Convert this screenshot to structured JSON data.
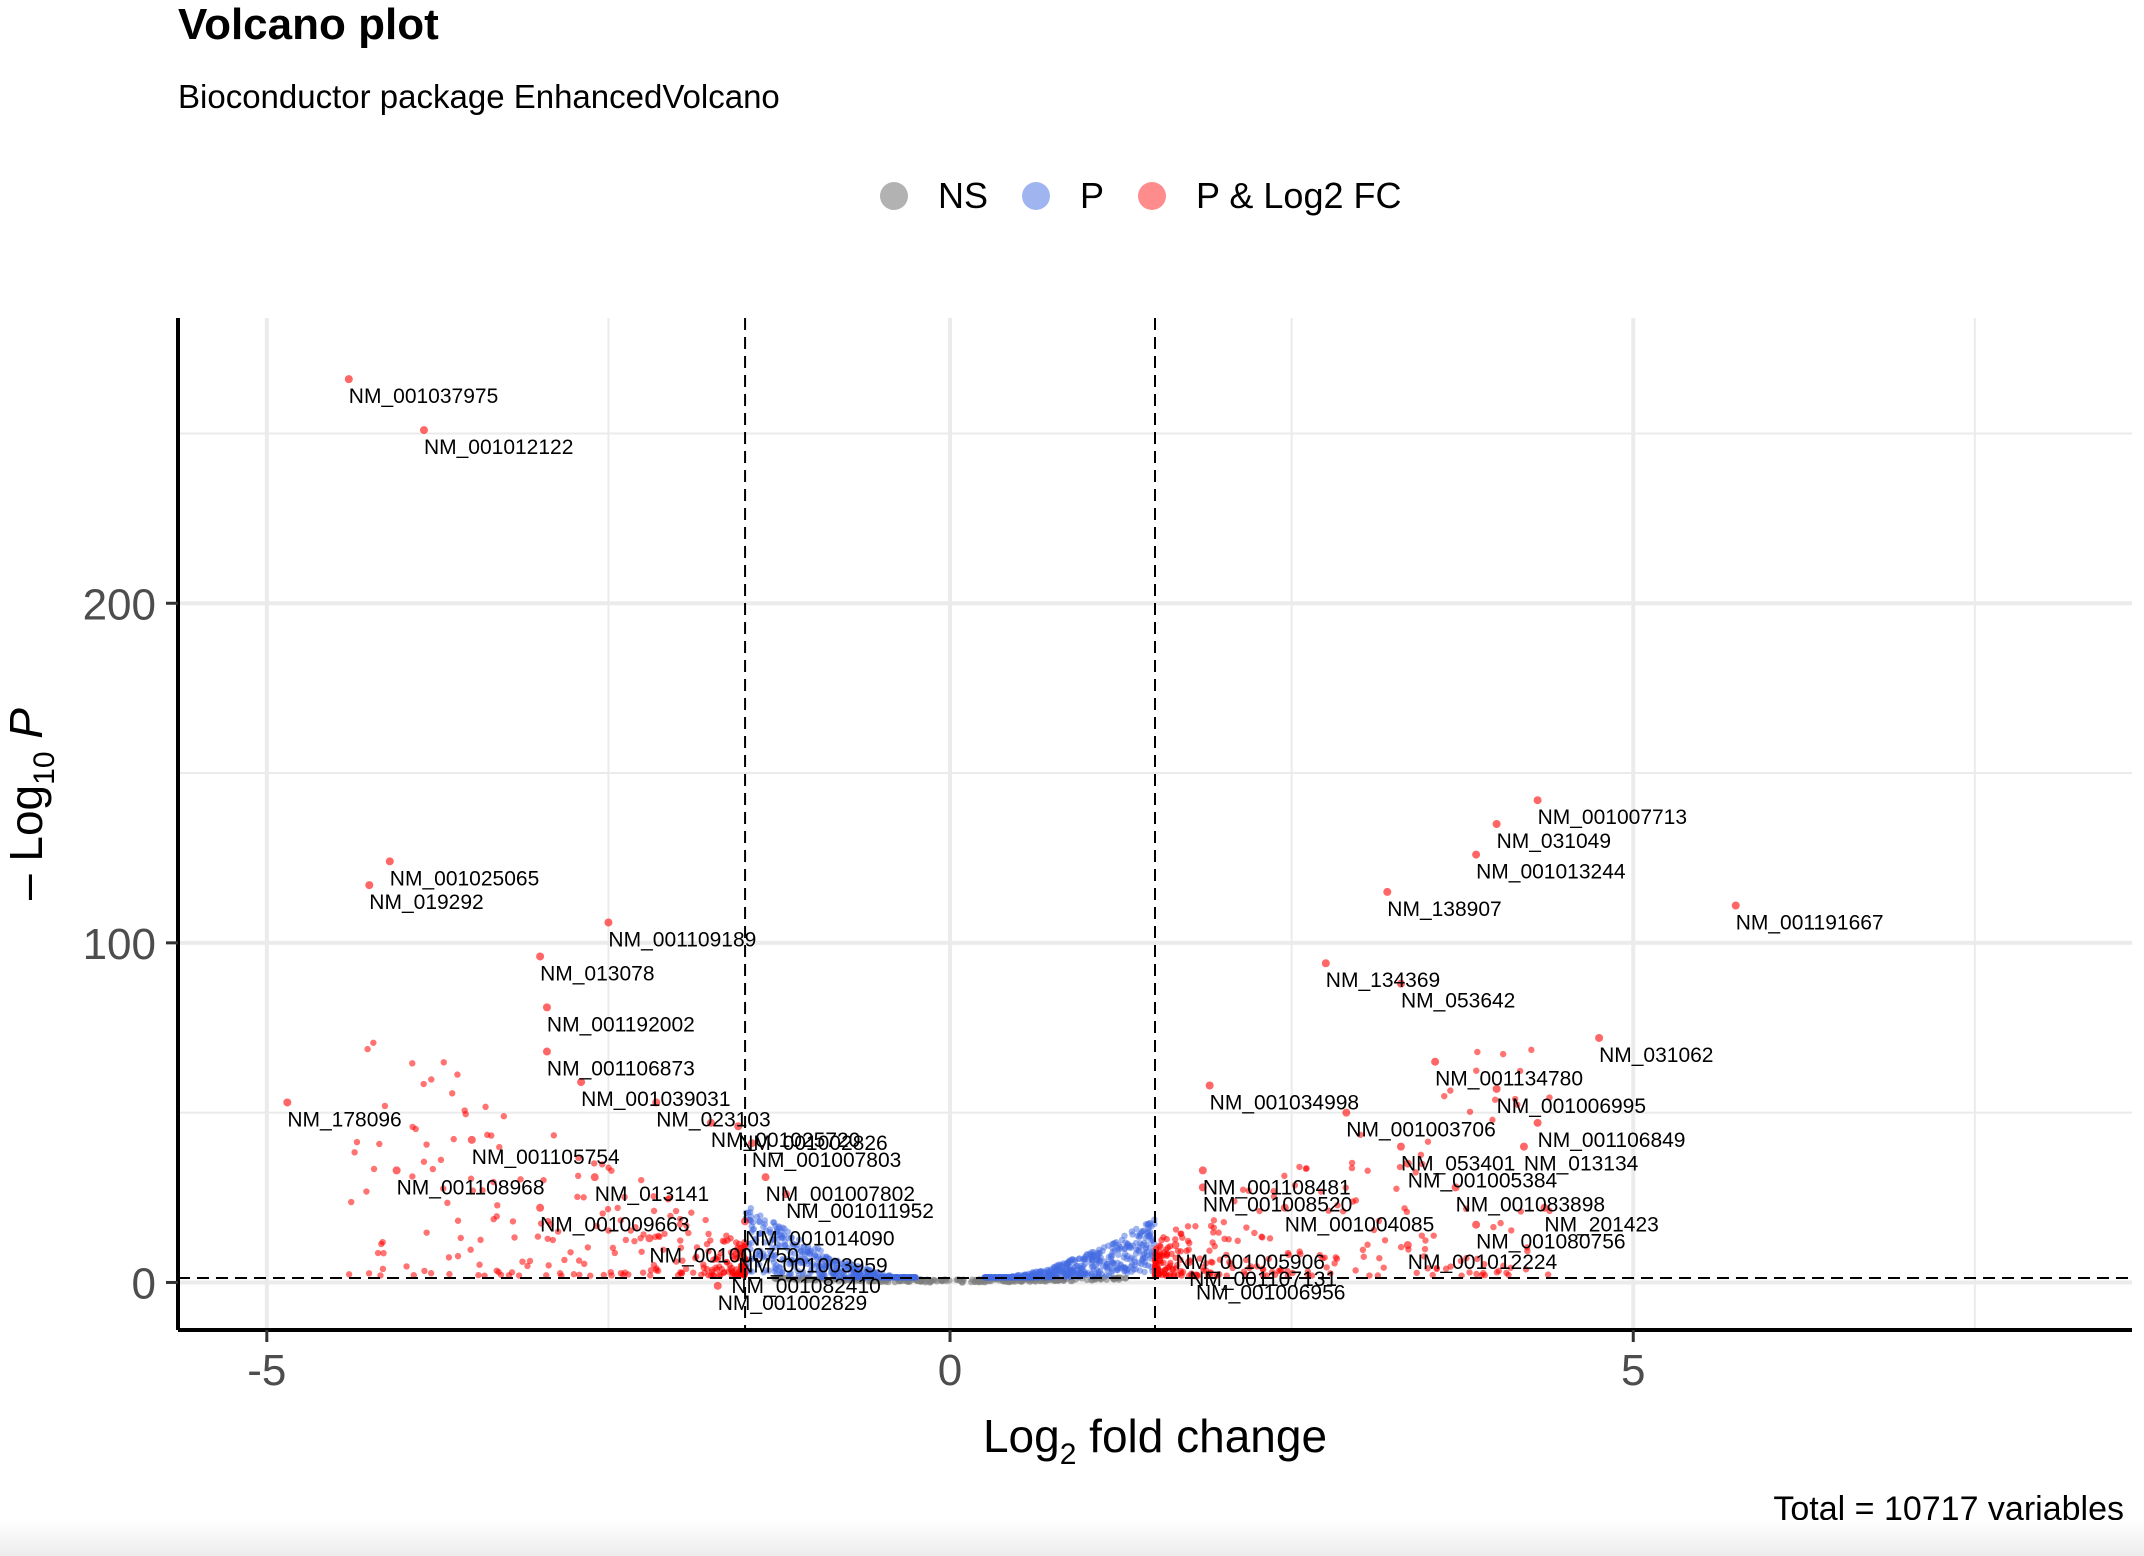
{
  "title": "Volcano plot",
  "subtitle": "Bioconductor package EnhancedVolcano",
  "caption": "Total = 10717 variables",
  "legend": [
    {
      "label": "NS",
      "color": "#7f7f7f"
    },
    {
      "label": "P",
      "color": "#4169e1"
    },
    {
      "label": "P & Log2 FC",
      "color": "#ff0000"
    }
  ],
  "chart_data": {
    "type": "scatter",
    "title": "Volcano plot",
    "subtitle": "Bioconductor package EnhancedVolcano",
    "xlabel_main": "Log",
    "xlabel_sub": "2",
    "xlabel_tail": " fold change",
    "ylabel_main": "– Log",
    "ylabel_sub": "10",
    "ylabel_tail": " P",
    "xlim": [
      -5.65,
      8.65
    ],
    "ylim": [
      -14,
      284
    ],
    "x_ticks": [
      -5,
      0,
      5
    ],
    "x_tick_labels": [
      "-5",
      "0",
      "5"
    ],
    "x_minor_grid": [
      -2.5,
      2.5,
      7.5
    ],
    "y_ticks": [
      0,
      100,
      200
    ],
    "y_tick_labels": [
      "0",
      "100",
      "200"
    ],
    "y_minor_grid": [
      50,
      150,
      250
    ],
    "fc_cutoff": 1.5,
    "p_cutoff": 1.3,
    "grid": true,
    "legend_position": "top",
    "colors": {
      "NS": "#7f7f7f",
      "P": "#4169e1",
      "P & Log2 FC": "#ff0000",
      "cutoff_line": "#000000"
    },
    "labeled_points": [
      {
        "label": "NM_001037975",
        "x": -4.4,
        "y": 266
      },
      {
        "label": "NM_001012122",
        "x": -3.85,
        "y": 251
      },
      {
        "label": "NM_001025065",
        "x": -4.1,
        "y": 124
      },
      {
        "label": "NM_019292",
        "x": -4.25,
        "y": 117
      },
      {
        "label": "NM_001109189",
        "x": -2.5,
        "y": 106
      },
      {
        "label": "NM_013078",
        "x": -3.0,
        "y": 96
      },
      {
        "label": "NM_001192002",
        "x": -2.95,
        "y": 81
      },
      {
        "label": "NM_001106873",
        "x": -2.95,
        "y": 68
      },
      {
        "label": "NM_001039031",
        "x": -2.7,
        "y": 59
      },
      {
        "label": "NM_023103",
        "x": -2.15,
        "y": 53
      },
      {
        "label": "NM_001025720",
        "x": -1.75,
        "y": 47
      },
      {
        "label": "NM_178096",
        "x": -4.85,
        "y": 53
      },
      {
        "label": "NM_001105754",
        "x": -3.5,
        "y": 42
      },
      {
        "label": "NM_001108968",
        "x": -4.05,
        "y": 33
      },
      {
        "label": "NM_013141",
        "x": -2.6,
        "y": 31
      },
      {
        "label": "NM_001009663",
        "x": -3.0,
        "y": 22
      },
      {
        "label": "NM_001000750",
        "x": -2.2,
        "y": 13
      },
      {
        "label": "NM_001002826",
        "x": -1.55,
        "y": 46
      },
      {
        "label": "NM_001007803",
        "x": -1.45,
        "y": 41
      },
      {
        "label": "NM_001007802",
        "x": -1.35,
        "y": 31
      },
      {
        "label": "NM_001011952",
        "x": -1.2,
        "y": 26
      },
      {
        "label": "NM_001014090",
        "x": -1.5,
        "y": 18
      },
      {
        "label": "NM_001003959",
        "x": -1.55,
        "y": 10
      },
      {
        "label": "NM_001082410",
        "x": -1.6,
        "y": 4
      },
      {
        "label": "NM_001002829",
        "x": -1.7,
        "y": -1
      },
      {
        "label": "NM_001007713",
        "x": 4.3,
        "y": 142
      },
      {
        "label": "NM_031049",
        "x": 4.0,
        "y": 135
      },
      {
        "label": "NM_001013244",
        "x": 3.85,
        "y": 126
      },
      {
        "label": "NM_138907",
        "x": 3.2,
        "y": 115
      },
      {
        "label": "NM_001191667",
        "x": 5.75,
        "y": 111
      },
      {
        "label": "NM_134369",
        "x": 2.75,
        "y": 94
      },
      {
        "label": "NM_053642",
        "x": 3.3,
        "y": 88
      },
      {
        "label": "NM_031062",
        "x": 4.75,
        "y": 72
      },
      {
        "label": "NM_001134780",
        "x": 3.55,
        "y": 65
      },
      {
        "label": "NM_001034998",
        "x": 1.9,
        "y": 58
      },
      {
        "label": "NM_001006995",
        "x": 4.0,
        "y": 57
      },
      {
        "label": "NM_001003706",
        "x": 2.9,
        "y": 50
      },
      {
        "label": "NM_001106849",
        "x": 4.3,
        "y": 47
      },
      {
        "label": "NM_013134",
        "x": 4.2,
        "y": 40
      },
      {
        "label": "NM_053401",
        "x": 3.3,
        "y": 40
      },
      {
        "label": "NM_001005384",
        "x": 3.35,
        "y": 35
      },
      {
        "label": "NM_001108481",
        "x": 1.85,
        "y": 33
      },
      {
        "label": "NM_001008520",
        "x": 1.85,
        "y": 28
      },
      {
        "label": "NM_001083898",
        "x": 3.7,
        "y": 28
      },
      {
        "label": "NM_201423",
        "x": 4.35,
        "y": 22
      },
      {
        "label": "NM_001004085",
        "x": 2.45,
        "y": 22
      },
      {
        "label": "NM_001080756",
        "x": 3.85,
        "y": 17
      },
      {
        "label": "NM_001005906",
        "x": 1.65,
        "y": 11
      },
      {
        "label": "NM_001012224",
        "x": 3.35,
        "y": 11
      },
      {
        "label": "NM_001107131",
        "x": 1.75,
        "y": 6
      },
      {
        "label": "NM_001006956",
        "x": 1.8,
        "y": 2
      }
    ]
  }
}
